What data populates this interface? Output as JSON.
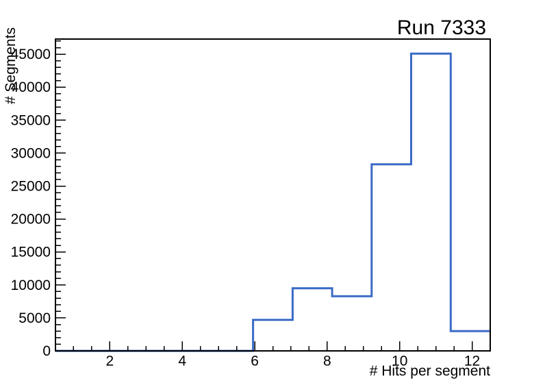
{
  "page": {
    "background": "#ffffff"
  },
  "chart_data": {
    "type": "bar",
    "subtype": "step-histogram",
    "title": "Run 7333",
    "xlabel": "# Hits per segment",
    "ylabel": "# Segments",
    "xlim": [
      0.5,
      12.5
    ],
    "ylim": [
      0,
      47300
    ],
    "x_major_ticks": [
      2,
      4,
      6,
      8,
      10,
      12
    ],
    "x_minor_tick_step": 0.5,
    "y_major_ticks": [
      0,
      5000,
      10000,
      15000,
      20000,
      25000,
      30000,
      35000,
      40000,
      45000
    ],
    "y_minor_tick_step": 1000,
    "bin_edges": [
      0.5,
      1.5909,
      2.6818,
      3.7727,
      4.8636,
      5.9545,
      7.0455,
      8.1364,
      9.2273,
      10.3182,
      11.4091,
      12.5
    ],
    "values": [
      0,
      0,
      0,
      0,
      0,
      4700,
      9500,
      8300,
      28300,
      45100,
      3000
    ],
    "line_color": "#3A6BC6",
    "axis_color": "#000000",
    "text_color": "#000000",
    "grid": false,
    "legend": false
  }
}
